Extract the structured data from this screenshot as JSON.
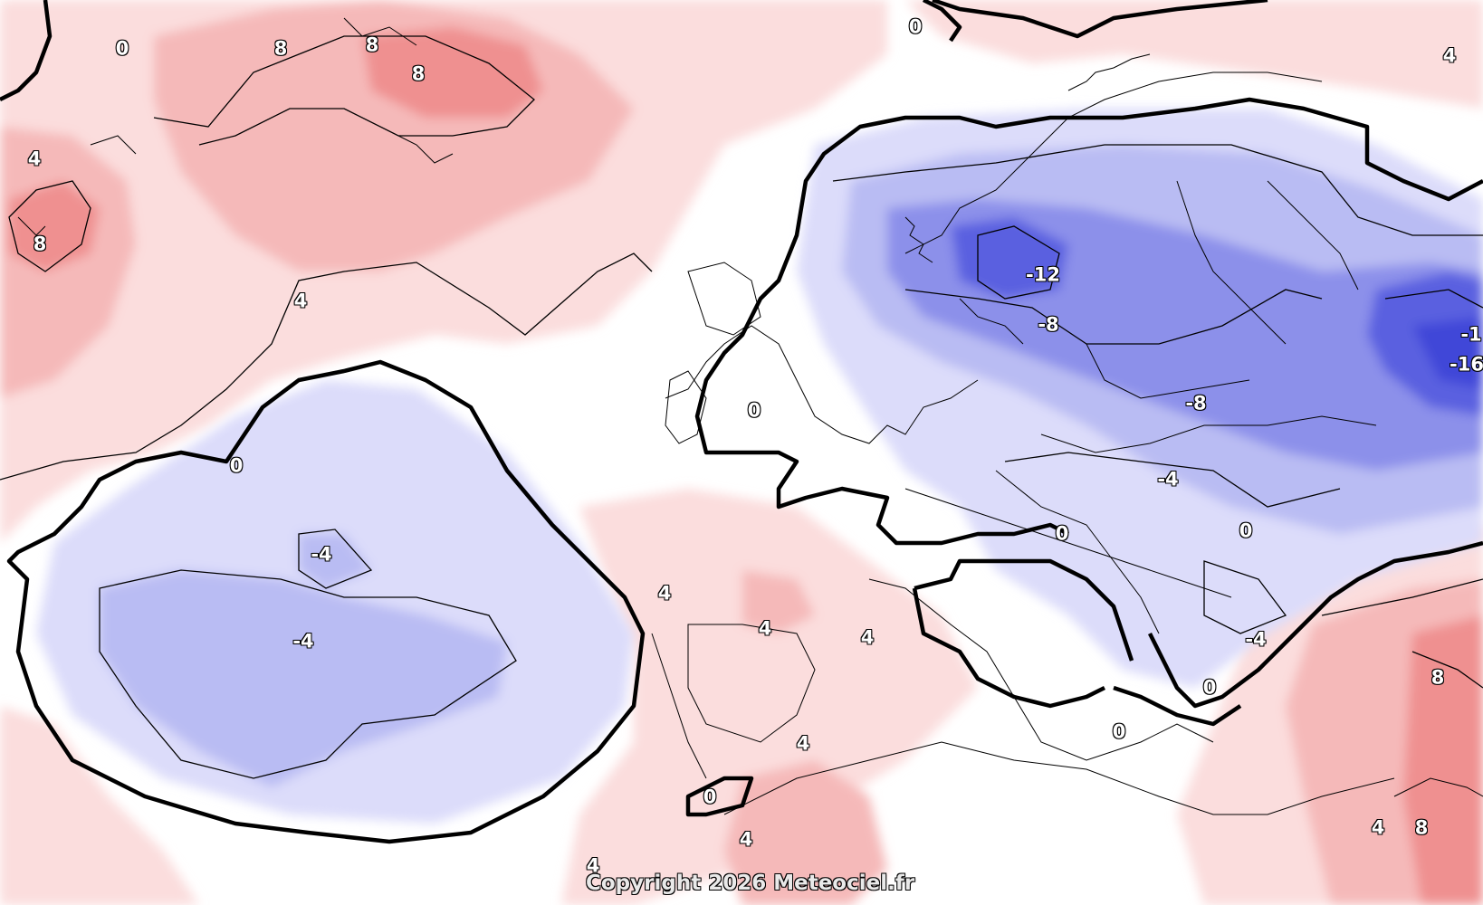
{
  "map": {
    "colors": {
      "warm_light": "#fbdddd",
      "warm_mid": "#f5b9b9",
      "warm_strong": "#ef9090",
      "cold_light": "#dcdcfa",
      "cold_mid": "#b9bcf3",
      "cold_strong": "#8c90ea",
      "cold_deep": "#5a61e0",
      "cold_core": "#3f47d8",
      "zero_isoline": "#000000"
    },
    "contour_labels": [
      "0",
      "8",
      "8",
      "8",
      "4",
      "8",
      "4",
      "0",
      "-4",
      "-4",
      "4",
      "4",
      "4",
      "4",
      "0",
      "4",
      "4",
      "0",
      "-12",
      "-8",
      "-8",
      "-4",
      "-1",
      "-16",
      "0",
      "0",
      "-4",
      "0",
      "0",
      "8",
      "4",
      "8",
      "4",
      "0"
    ],
    "copyright": "Copyright 2026 Meteociel.fr"
  }
}
